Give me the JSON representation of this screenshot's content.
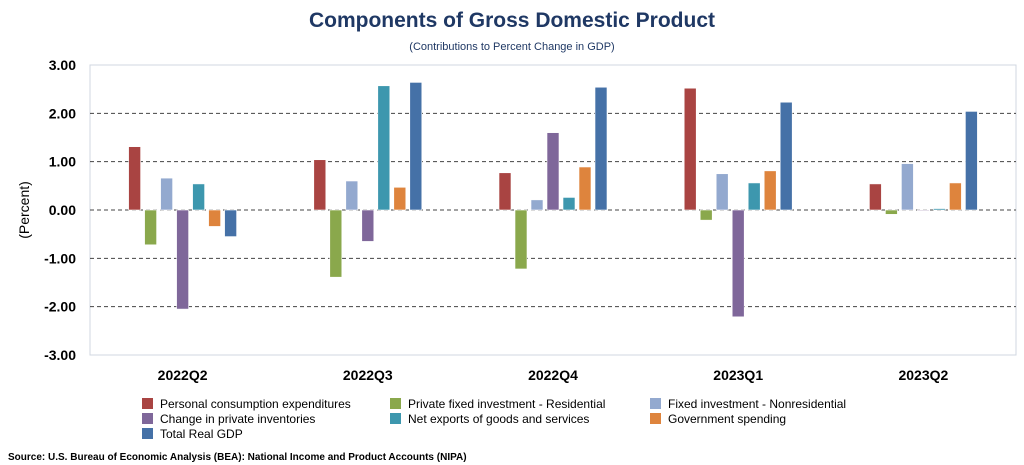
{
  "chart_data": {
    "type": "bar",
    "title": "Components of Gross Domestic Product",
    "subtitle": "(Contributions to Percent Change in GDP)",
    "xlabel": "",
    "ylabel": "(Percent)",
    "ylim": [
      -3,
      3
    ],
    "yticks": [
      3,
      2,
      1,
      0,
      -1,
      -2,
      -3
    ],
    "ytick_labels": [
      "3.00",
      "2.00",
      "1.00",
      "0.00",
      "-1.00",
      "-2.00",
      "-3.00"
    ],
    "grid": true,
    "legend_position": "bottom",
    "categories": [
      "2022Q2",
      "2022Q3",
      "2022Q4",
      "2023Q1",
      "2023Q2"
    ],
    "series": [
      {
        "name": "Personal consumption expenditures",
        "color": "#A94442",
        "values": [
          1.31,
          1.04,
          0.77,
          2.52,
          0.54
        ]
      },
      {
        "name": "Private fixed investment - Residential",
        "color": "#8AA84C",
        "values": [
          -0.72,
          -1.39,
          -1.22,
          -0.21,
          -0.09
        ]
      },
      {
        "name": "Fixed investment - Nonresidential",
        "color": "#93A9CF",
        "values": [
          0.66,
          0.6,
          0.21,
          0.75,
          0.96
        ]
      },
      {
        "name": "Change in private inventories",
        "color": "#7F679A",
        "values": [
          -2.05,
          -0.65,
          1.6,
          -2.21,
          0.0
        ]
      },
      {
        "name": "Net exports of goods and services",
        "color": "#3D97AE",
        "values": [
          0.54,
          2.57,
          0.26,
          0.56,
          0.03
        ]
      },
      {
        "name": "Government spending",
        "color": "#DE843D",
        "values": [
          -0.34,
          0.47,
          0.89,
          0.81,
          0.56
        ]
      },
      {
        "name": "Total Real GDP",
        "color": "#4571A7",
        "values": [
          -0.55,
          2.64,
          2.54,
          2.23,
          2.04
        ]
      }
    ],
    "source": "Source: U.S. Bureau of Economic Analysis (BEA): National Income and Product Accounts (NIPA)"
  }
}
